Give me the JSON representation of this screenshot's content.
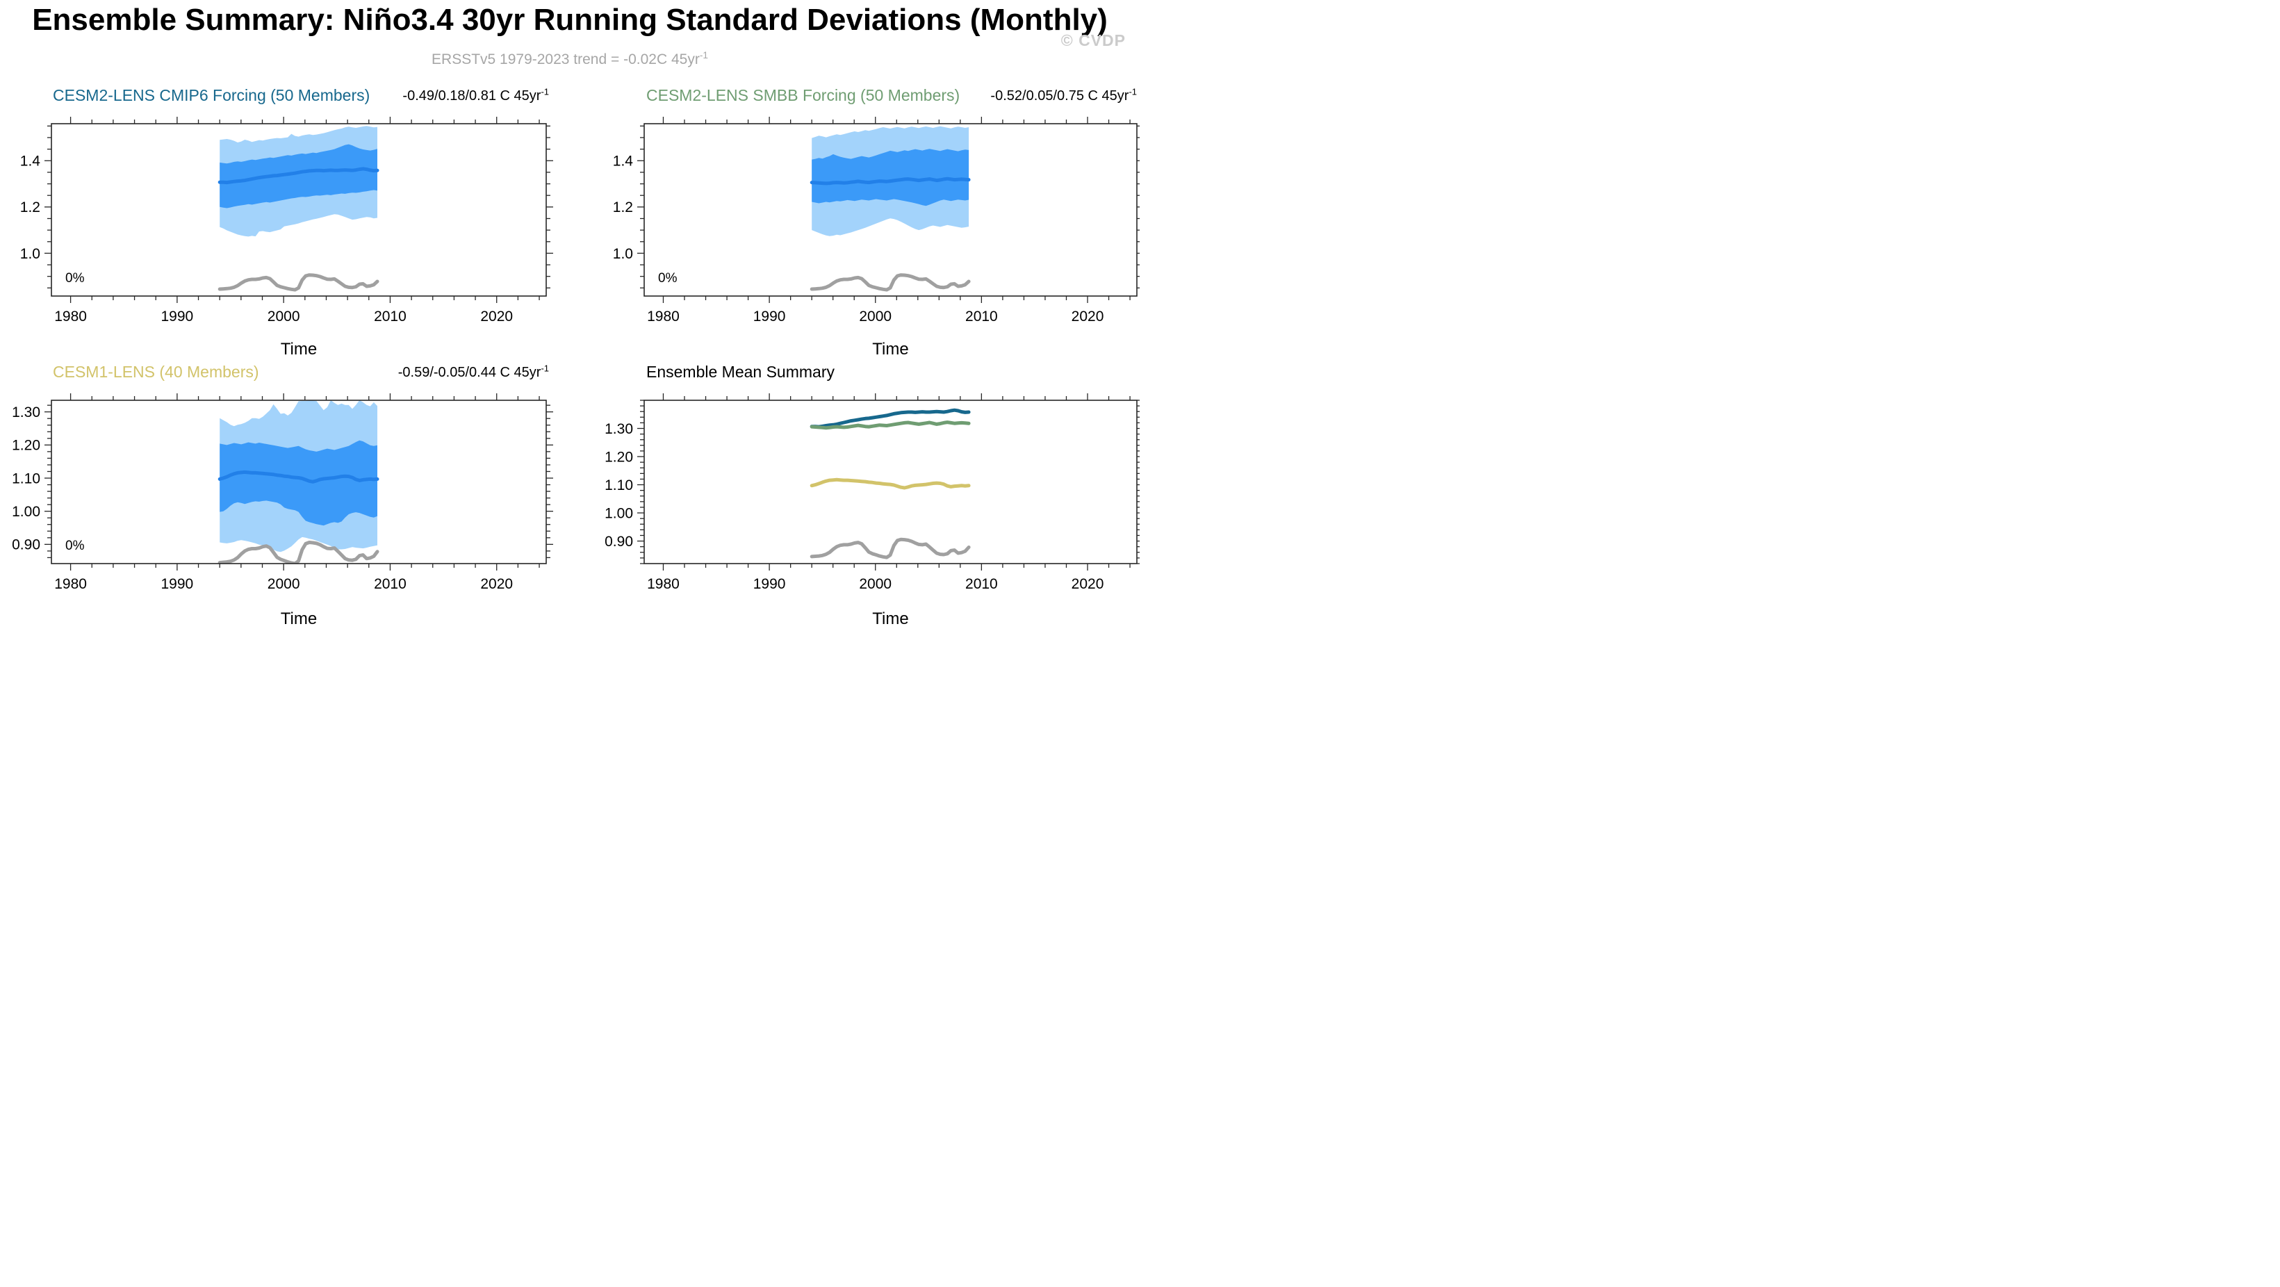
{
  "header": {
    "title": "Ensemble Summary: Niño3.4 30yr Running Standard Deviations (Monthly)",
    "subtitle": {
      "text": "ERSSTv5 1979-2023 trend = -0.02C 45yr",
      "sup": "-1"
    },
    "watermark": "© CVDP"
  },
  "chart_data": {
    "type": "line",
    "xlabel": "Time",
    "xlim": [
      1978.2,
      2024.65
    ],
    "band_x_range": [
      1994.0,
      2008.8
    ],
    "x_ticks": {
      "values": [
        1980,
        1990,
        2000,
        2010,
        2020
      ],
      "labels": [
        "1980",
        "1990",
        "2000",
        "2010",
        "2020"
      ],
      "minor_step": 2
    },
    "colors": {
      "band_outer": "#a3d3fb",
      "band_inner": "#3b9af8",
      "mean_line": "#2280e8",
      "obs": "#a0a0a0",
      "cmip6": "#17688d",
      "smbb": "#6f9d72",
      "cesm1": "#d2c36a",
      "frame": "#262626",
      "tick_label": "#000000",
      "subtitle": "#a6a6a6",
      "watermark": "#cbcbcb"
    },
    "panels": [
      {
        "id": "cmip6",
        "title": "CESM2-LENS CMIP6 Forcing (50 Members)",
        "title_color": "#17688d",
        "trend": {
          "text": "-0.49/0.18/0.81 C 45yr",
          "sup": "-1"
        },
        "pct_label": "0%",
        "ylim": [
          0.815,
          1.56
        ],
        "yticks": {
          "values": [
            1.4,
            1.2,
            1.0
          ],
          "labels": [
            "1.4",
            "1.2",
            "1.0"
          ],
          "minor_step": 0.05
        },
        "series": {
          "outer_upper": [
            1.49,
            1.492,
            1.494,
            1.491,
            1.486,
            1.479,
            1.483,
            1.491,
            1.487,
            1.481,
            1.485,
            1.489,
            1.487,
            1.491,
            1.494,
            1.496,
            1.498,
            1.497,
            1.499,
            1.501,
            1.516,
            1.507,
            1.504,
            1.509,
            1.512,
            1.514,
            1.511,
            1.513,
            1.516,
            1.519,
            1.523,
            1.528,
            1.532,
            1.536,
            1.539,
            1.544,
            1.547,
            1.544,
            1.542,
            1.545,
            1.548,
            1.55,
            1.547,
            1.544,
            1.546
          ],
          "inner_upper": [
            1.392,
            1.39,
            1.388,
            1.391,
            1.395,
            1.397,
            1.395,
            1.398,
            1.402,
            1.405,
            1.403,
            1.406,
            1.409,
            1.411,
            1.414,
            1.412,
            1.415,
            1.418,
            1.421,
            1.424,
            1.422,
            1.426,
            1.429,
            1.431,
            1.429,
            1.432,
            1.435,
            1.433,
            1.437,
            1.44,
            1.443,
            1.446,
            1.45,
            1.456,
            1.462,
            1.468,
            1.471,
            1.466,
            1.459,
            1.453,
            1.449,
            1.446,
            1.444,
            1.447,
            1.451
          ],
          "mean": [
            1.307,
            1.307,
            1.306,
            1.308,
            1.31,
            1.312,
            1.313,
            1.315,
            1.318,
            1.321,
            1.324,
            1.327,
            1.329,
            1.331,
            1.333,
            1.335,
            1.336,
            1.338,
            1.34,
            1.342,
            1.344,
            1.346,
            1.349,
            1.352,
            1.354,
            1.356,
            1.357,
            1.358,
            1.358,
            1.357,
            1.358,
            1.359,
            1.358,
            1.358,
            1.359,
            1.36,
            1.359,
            1.358,
            1.36,
            1.363,
            1.365,
            1.363,
            1.359,
            1.357,
            1.358
          ],
          "inner_lower": [
            1.2,
            1.197,
            1.195,
            1.198,
            1.202,
            1.205,
            1.207,
            1.209,
            1.212,
            1.21,
            1.213,
            1.216,
            1.219,
            1.221,
            1.219,
            1.222,
            1.225,
            1.228,
            1.231,
            1.234,
            1.237,
            1.239,
            1.242,
            1.244,
            1.243,
            1.245,
            1.248,
            1.25,
            1.249,
            1.251,
            1.253,
            1.251,
            1.254,
            1.256,
            1.258,
            1.257,
            1.26,
            1.262,
            1.261,
            1.263,
            1.266,
            1.268,
            1.271,
            1.273,
            1.271
          ],
          "outer_lower": [
            1.113,
            1.107,
            1.099,
            1.093,
            1.087,
            1.081,
            1.077,
            1.074,
            1.072,
            1.075,
            1.073,
            1.094,
            1.096,
            1.093,
            1.091,
            1.095,
            1.099,
            1.103,
            1.116,
            1.119,
            1.122,
            1.125,
            1.129,
            1.134,
            1.138,
            1.142,
            1.146,
            1.149,
            1.153,
            1.157,
            1.161,
            1.165,
            1.169,
            1.167,
            1.162,
            1.157,
            1.151,
            1.145,
            1.147,
            1.151,
            1.154,
            1.157,
            1.155,
            1.151,
            1.153
          ],
          "obs": [
            0.845,
            0.846,
            0.847,
            0.849,
            0.853,
            0.86,
            0.871,
            0.88,
            0.885,
            0.887,
            0.887,
            0.889,
            0.893,
            0.895,
            0.89,
            0.876,
            0.861,
            0.855,
            0.851,
            0.847,
            0.844,
            0.842,
            0.85,
            0.884,
            0.902,
            0.906,
            0.905,
            0.903,
            0.899,
            0.893,
            0.888,
            0.887,
            0.889,
            0.879,
            0.868,
            0.857,
            0.853,
            0.852,
            0.855,
            0.866,
            0.868,
            0.857,
            0.859,
            0.864,
            0.878
          ]
        }
      },
      {
        "id": "smbb",
        "title": "CESM2-LENS SMBB Forcing (50 Members)",
        "title_color": "#6f9d72",
        "trend": {
          "text": "-0.52/0.05/0.75 C 45yr",
          "sup": "-1"
        },
        "pct_label": "0%",
        "ylim": [
          0.815,
          1.56
        ],
        "yticks": {
          "values": [
            1.4,
            1.2,
            1.0
          ],
          "labels": [
            "1.4",
            "1.2",
            "1.0"
          ],
          "minor_step": 0.05
        },
        "series": {
          "outer_upper": [
            1.498,
            1.503,
            1.508,
            1.505,
            1.501,
            1.506,
            1.51,
            1.514,
            1.511,
            1.515,
            1.519,
            1.523,
            1.527,
            1.524,
            1.528,
            1.532,
            1.529,
            1.533,
            1.537,
            1.541,
            1.545,
            1.542,
            1.539,
            1.543,
            1.546,
            1.543,
            1.54,
            1.544,
            1.547,
            1.544,
            1.541,
            1.545,
            1.548,
            1.545,
            1.542,
            1.546,
            1.549,
            1.546,
            1.543,
            1.54,
            1.544,
            1.547,
            1.545,
            1.542,
            1.545
          ],
          "inner_upper": [
            1.405,
            1.408,
            1.412,
            1.409,
            1.415,
            1.42,
            1.428,
            1.422,
            1.417,
            1.413,
            1.41,
            1.408,
            1.412,
            1.416,
            1.42,
            1.417,
            1.414,
            1.418,
            1.423,
            1.428,
            1.433,
            1.438,
            1.443,
            1.44,
            1.437,
            1.441,
            1.445,
            1.442,
            1.446,
            1.45,
            1.447,
            1.444,
            1.448,
            1.451,
            1.448,
            1.445,
            1.442,
            1.446,
            1.45,
            1.447,
            1.444,
            1.441,
            1.445,
            1.448,
            1.446
          ],
          "mean": [
            1.306,
            1.305,
            1.304,
            1.303,
            1.302,
            1.303,
            1.305,
            1.306,
            1.305,
            1.304,
            1.305,
            1.307,
            1.309,
            1.311,
            1.309,
            1.307,
            1.306,
            1.308,
            1.31,
            1.312,
            1.311,
            1.31,
            1.312,
            1.314,
            1.316,
            1.318,
            1.32,
            1.321,
            1.319,
            1.317,
            1.315,
            1.317,
            1.319,
            1.321,
            1.318,
            1.315,
            1.317,
            1.32,
            1.322,
            1.32,
            1.318,
            1.319,
            1.32,
            1.319,
            1.318
          ],
          "inner_lower": [
            1.222,
            1.219,
            1.216,
            1.219,
            1.222,
            1.22,
            1.223,
            1.226,
            1.224,
            1.227,
            1.23,
            1.228,
            1.226,
            1.229,
            1.232,
            1.23,
            1.228,
            1.231,
            1.234,
            1.232,
            1.23,
            1.228,
            1.231,
            1.234,
            1.232,
            1.229,
            1.226,
            1.223,
            1.22,
            1.216,
            1.212,
            1.208,
            1.205,
            1.21,
            1.216,
            1.222,
            1.228,
            1.232,
            1.229,
            1.226,
            1.229,
            1.232,
            1.23,
            1.228,
            1.231
          ],
          "outer_lower": [
            1.1,
            1.094,
            1.088,
            1.082,
            1.077,
            1.074,
            1.076,
            1.08,
            1.078,
            1.082,
            1.086,
            1.09,
            1.095,
            1.1,
            1.105,
            1.11,
            1.116,
            1.122,
            1.128,
            1.134,
            1.14,
            1.146,
            1.151,
            1.148,
            1.143,
            1.136,
            1.128,
            1.12,
            1.112,
            1.105,
            1.1,
            1.104,
            1.11,
            1.116,
            1.12,
            1.117,
            1.114,
            1.118,
            1.122,
            1.119,
            1.116,
            1.113,
            1.11,
            1.112,
            1.115
          ],
          "obs": [
            0.845,
            0.846,
            0.847,
            0.849,
            0.853,
            0.86,
            0.871,
            0.88,
            0.885,
            0.887,
            0.887,
            0.889,
            0.893,
            0.895,
            0.89,
            0.876,
            0.861,
            0.855,
            0.851,
            0.847,
            0.844,
            0.842,
            0.85,
            0.884,
            0.902,
            0.906,
            0.905,
            0.903,
            0.899,
            0.893,
            0.888,
            0.887,
            0.889,
            0.879,
            0.868,
            0.857,
            0.853,
            0.852,
            0.855,
            0.866,
            0.868,
            0.857,
            0.859,
            0.864,
            0.878
          ]
        }
      },
      {
        "id": "cesm1",
        "title": "CESM1-LENS (40 Members)",
        "title_color": "#d2c36a",
        "trend": {
          "text": "-0.59/-0.05/0.44 C 45yr",
          "sup": "-1"
        },
        "pct_label": "0%",
        "ylim": [
          0.842,
          1.335
        ],
        "yticks": {
          "values": [
            1.3,
            1.2,
            1.1,
            1.0,
            0.9
          ],
          "labels": [
            "1.30",
            "1.20",
            "1.10",
            "1.00",
            "0.90"
          ],
          "minor_step": 0.02
        },
        "series": {
          "outer_upper": [
            1.281,
            1.275,
            1.269,
            1.261,
            1.257,
            1.261,
            1.263,
            1.267,
            1.273,
            1.281,
            1.281,
            1.279,
            1.285,
            1.295,
            1.305,
            1.323,
            1.309,
            1.294,
            1.296,
            1.289,
            1.297,
            1.314,
            1.332,
            1.333,
            1.333,
            1.334,
            1.334,
            1.333,
            1.319,
            1.305,
            1.314,
            1.335,
            1.327,
            1.321,
            1.325,
            1.321,
            1.321,
            1.309,
            1.321,
            1.335,
            1.329,
            1.321,
            1.317,
            1.329,
            1.318
          ],
          "inner_upper": [
            1.204,
            1.202,
            1.2,
            1.203,
            1.206,
            1.204,
            1.202,
            1.205,
            1.208,
            1.206,
            1.204,
            1.207,
            1.205,
            1.203,
            1.201,
            1.199,
            1.197,
            1.195,
            1.193,
            1.191,
            1.193,
            1.195,
            1.197,
            1.192,
            1.187,
            1.184,
            1.182,
            1.18,
            1.183,
            1.186,
            1.189,
            1.187,
            1.185,
            1.188,
            1.191,
            1.194,
            1.197,
            1.203,
            1.209,
            1.214,
            1.211,
            1.205,
            1.199,
            1.197,
            1.199
          ],
          "mean": [
            1.097,
            1.1,
            1.104,
            1.109,
            1.113,
            1.116,
            1.117,
            1.118,
            1.117,
            1.116,
            1.116,
            1.115,
            1.114,
            1.113,
            1.112,
            1.111,
            1.109,
            1.108,
            1.106,
            1.105,
            1.103,
            1.102,
            1.101,
            1.099,
            1.095,
            1.091,
            1.089,
            1.092,
            1.096,
            1.098,
            1.099,
            1.1,
            1.101,
            1.103,
            1.105,
            1.106,
            1.105,
            1.102,
            1.096,
            1.093,
            1.095,
            1.096,
            1.097,
            1.096,
            1.097
          ],
          "inner_lower": [
            0.998,
            1.0,
            1.007,
            1.017,
            1.024,
            1.027,
            1.025,
            1.022,
            1.025,
            1.028,
            1.03,
            1.029,
            1.031,
            1.032,
            1.03,
            1.028,
            1.026,
            1.021,
            1.011,
            1.007,
            1.005,
            1.003,
            0.998,
            0.983,
            0.971,
            0.967,
            0.964,
            0.961,
            0.959,
            0.957,
            0.961,
            0.965,
            0.967,
            0.965,
            0.969,
            0.981,
            0.991,
            0.995,
            0.997,
            0.995,
            0.991,
            0.987,
            0.983,
            0.981,
            0.985
          ],
          "outer_lower": [
            0.906,
            0.904,
            0.903,
            0.905,
            0.907,
            0.911,
            0.913,
            0.911,
            0.909,
            0.906,
            0.903,
            0.899,
            0.897,
            0.895,
            0.889,
            0.884,
            0.879,
            0.877,
            0.881,
            0.887,
            0.894,
            0.904,
            0.915,
            0.922,
            0.92,
            0.917,
            0.915,
            0.911,
            0.907,
            0.903,
            0.899,
            0.895,
            0.889,
            0.885,
            0.885,
            0.886,
            0.889,
            0.892,
            0.89,
            0.889,
            0.888,
            0.89,
            0.893,
            0.895,
            0.897
          ],
          "obs": [
            0.845,
            0.846,
            0.847,
            0.849,
            0.853,
            0.86,
            0.871,
            0.88,
            0.885,
            0.887,
            0.887,
            0.889,
            0.893,
            0.895,
            0.89,
            0.876,
            0.861,
            0.855,
            0.851,
            0.847,
            0.844,
            0.842,
            0.85,
            0.884,
            0.902,
            0.906,
            0.905,
            0.903,
            0.899,
            0.893,
            0.888,
            0.887,
            0.889,
            0.879,
            0.868,
            0.857,
            0.853,
            0.852,
            0.855,
            0.866,
            0.868,
            0.857,
            0.859,
            0.864,
            0.878
          ]
        }
      },
      {
        "id": "ensemble",
        "title": "Ensemble Mean Summary",
        "title_color": "#000000",
        "ylim": [
          0.82,
          1.4
        ],
        "yticks": {
          "values": [
            1.3,
            1.2,
            1.1,
            1.0,
            0.9
          ],
          "labels": [
            "1.30",
            "1.20",
            "1.10",
            "1.00",
            "0.90"
          ],
          "minor_step": 0.02
        },
        "lines": [
          {
            "label": "CESM2-LENS CMIP6 ensemble mean",
            "source_panel": 0,
            "series": "mean",
            "color_key": "cmip6"
          },
          {
            "label": "CESM2-LENS SMBB ensemble mean",
            "source_panel": 1,
            "series": "mean",
            "color_key": "smbb"
          },
          {
            "label": "CESM1-LENS ensemble mean",
            "source_panel": 2,
            "series": "mean",
            "color_key": "cesm1"
          },
          {
            "label": "ERSSTv5 observations",
            "source_panel": 0,
            "series": "obs",
            "color_key": "obs"
          }
        ]
      }
    ]
  }
}
